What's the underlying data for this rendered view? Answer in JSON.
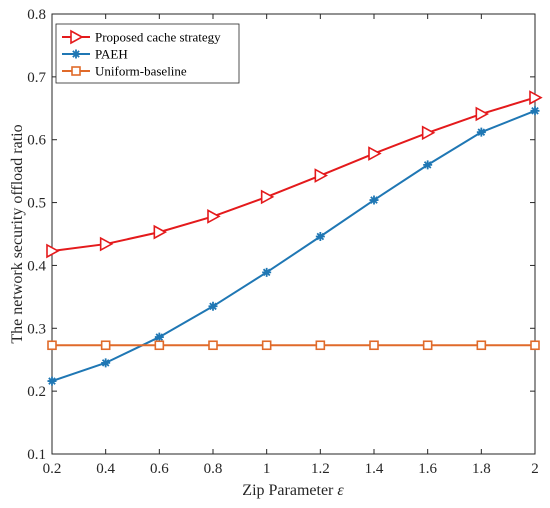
{
  "chart_data": {
    "type": "line",
    "xlabel": "Zip Parameter",
    "xlabel_symbol": "ε",
    "ylabel": "The network security offload ratio",
    "xlim": [
      0.2,
      2
    ],
    "ylim": [
      0.1,
      0.8
    ],
    "x_ticks": [
      0.2,
      0.4,
      0.6,
      0.8,
      1,
      1.2,
      1.4,
      1.6,
      1.8,
      2
    ],
    "x_tick_labels": [
      "0.2",
      "0.4",
      "0.6",
      "0.8",
      "1",
      "1.2",
      "1.4",
      "1.6",
      "1.8",
      "2"
    ],
    "y_ticks": [
      0.1,
      0.2,
      0.3,
      0.4,
      0.5,
      0.6,
      0.7,
      0.8
    ],
    "y_tick_labels": [
      "0.1",
      "0.2",
      "0.3",
      "0.4",
      "0.5",
      "0.6",
      "0.7",
      "0.8"
    ],
    "grid": false,
    "legend_position": "top-left",
    "x": [
      0.2,
      0.4,
      0.6,
      0.8,
      1,
      1.2,
      1.4,
      1.6,
      1.8,
      2
    ],
    "series": [
      {
        "name": "Proposed cache strategy",
        "color": "#e41a1c",
        "marker": "triangle-right",
        "values": [
          0.423,
          0.434,
          0.453,
          0.478,
          0.509,
          0.543,
          0.578,
          0.611,
          0.641,
          0.667
        ]
      },
      {
        "name": "PAEH",
        "color": "#1f77b4",
        "marker": "asterisk",
        "values": [
          0.216,
          0.245,
          0.286,
          0.335,
          0.389,
          0.446,
          0.504,
          0.56,
          0.612,
          0.646
        ]
      },
      {
        "name": "Uniform-baseline",
        "color": "#e06a2a",
        "marker": "square",
        "values": [
          0.273,
          0.273,
          0.273,
          0.273,
          0.273,
          0.273,
          0.273,
          0.273,
          0.273,
          0.273
        ]
      }
    ]
  }
}
